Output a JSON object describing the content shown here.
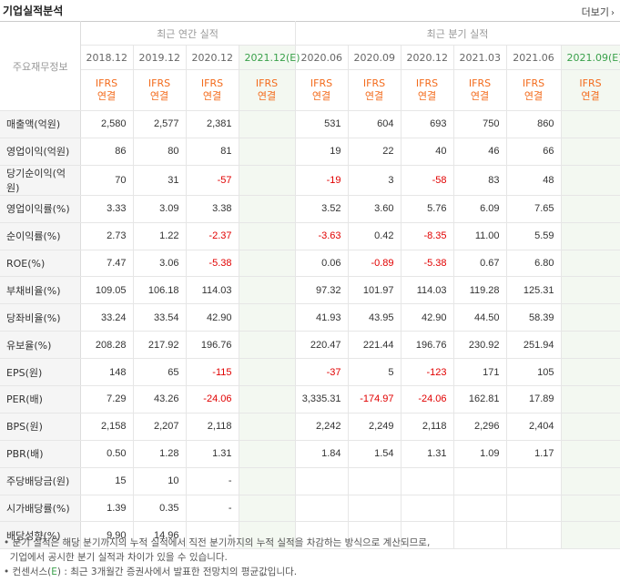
{
  "header": {
    "title": "기업실적분석",
    "more_label": "더보기",
    "more_icon": "chevron-right-icon"
  },
  "table": {
    "corner_label": "주요재무정보",
    "groups": [
      "최근 연간 실적",
      "최근 분기 실적"
    ],
    "periods": [
      "2018.12",
      "2019.12",
      "2020.12",
      "2021.12(E)",
      "2020.06",
      "2020.09",
      "2020.12",
      "2021.03",
      "2021.06",
      "2021.09(E)"
    ],
    "ifrs_line1": "IFRS",
    "ifrs_line2": "연결",
    "rows": [
      {
        "label": "매출액(억원)",
        "values": [
          "2,580",
          "2,577",
          "2,381",
          "",
          "531",
          "604",
          "693",
          "750",
          "860",
          ""
        ]
      },
      {
        "label": "영업이익(억원)",
        "values": [
          "86",
          "80",
          "81",
          "",
          "19",
          "22",
          "40",
          "46",
          "66",
          ""
        ]
      },
      {
        "label": "당기순이익(억원)",
        "values": [
          "70",
          "31",
          "-57",
          "",
          "-19",
          "3",
          "-58",
          "83",
          "48",
          ""
        ]
      },
      {
        "label": "영업이익률(%)",
        "values": [
          "3.33",
          "3.09",
          "3.38",
          "",
          "3.52",
          "3.60",
          "5.76",
          "6.09",
          "7.65",
          ""
        ]
      },
      {
        "label": "순이익률(%)",
        "values": [
          "2.73",
          "1.22",
          "-2.37",
          "",
          "-3.63",
          "0.42",
          "-8.35",
          "11.00",
          "5.59",
          ""
        ]
      },
      {
        "label": "ROE(%)",
        "values": [
          "7.47",
          "3.06",
          "-5.38",
          "",
          "0.06",
          "-0.89",
          "-5.38",
          "0.67",
          "6.80",
          ""
        ]
      },
      {
        "label": "부채비율(%)",
        "values": [
          "109.05",
          "106.18",
          "114.03",
          "",
          "97.32",
          "101.97",
          "114.03",
          "119.28",
          "125.31",
          ""
        ]
      },
      {
        "label": "당좌비율(%)",
        "values": [
          "33.24",
          "33.54",
          "42.90",
          "",
          "41.93",
          "43.95",
          "42.90",
          "44.50",
          "58.39",
          ""
        ]
      },
      {
        "label": "유보율(%)",
        "values": [
          "208.28",
          "217.92",
          "196.76",
          "",
          "220.47",
          "221.44",
          "196.76",
          "230.92",
          "251.94",
          ""
        ]
      },
      {
        "label": "EPS(원)",
        "values": [
          "148",
          "65",
          "-115",
          "",
          "-37",
          "5",
          "-123",
          "171",
          "105",
          ""
        ]
      },
      {
        "label": "PER(배)",
        "values": [
          "7.29",
          "43.26",
          "-24.06",
          "",
          "3,335.31",
          "-174.97",
          "-24.06",
          "162.81",
          "17.89",
          ""
        ]
      },
      {
        "label": "BPS(원)",
        "values": [
          "2,158",
          "2,207",
          "2,118",
          "",
          "2,242",
          "2,249",
          "2,118",
          "2,296",
          "2,404",
          ""
        ]
      },
      {
        "label": "PBR(배)",
        "values": [
          "0.50",
          "1.28",
          "1.31",
          "",
          "1.84",
          "1.54",
          "1.31",
          "1.09",
          "1.17",
          ""
        ]
      },
      {
        "label": "주당배당금(원)",
        "values": [
          "15",
          "10",
          "-",
          "",
          "",
          "",
          "",
          "",
          "",
          ""
        ]
      },
      {
        "label": "시가배당률(%)",
        "values": [
          "1.39",
          "0.35",
          "-",
          "",
          "",
          "",
          "",
          "",
          "",
          ""
        ]
      },
      {
        "label": "배당성향(%)",
        "values": [
          "9.90",
          "14.96",
          "-",
          "",
          "",
          "",
          "",
          "",
          "",
          ""
        ]
      }
    ]
  },
  "notes": {
    "line1": "• 분기 실적은 해당 분기까지의 누적 실적에서 직전 분기까지의 누적 실적을 차감하는 방식으로 계산되므로,",
    "line2": "  기업에서 공시한 분기 실적과 차이가 있을 수 있습니다.",
    "line3_prefix": "• 컨센서스(",
    "line3_e": "E",
    "line3_suffix": ") : 최근 3개월간 증권사에서 발표한 전망치의 평균값입니다."
  },
  "colors": {
    "accent_orange": "#f36b1c",
    "negative": "#e10000",
    "estimate_green": "#39a04a",
    "estimate_bg": "#f3f8f1"
  }
}
